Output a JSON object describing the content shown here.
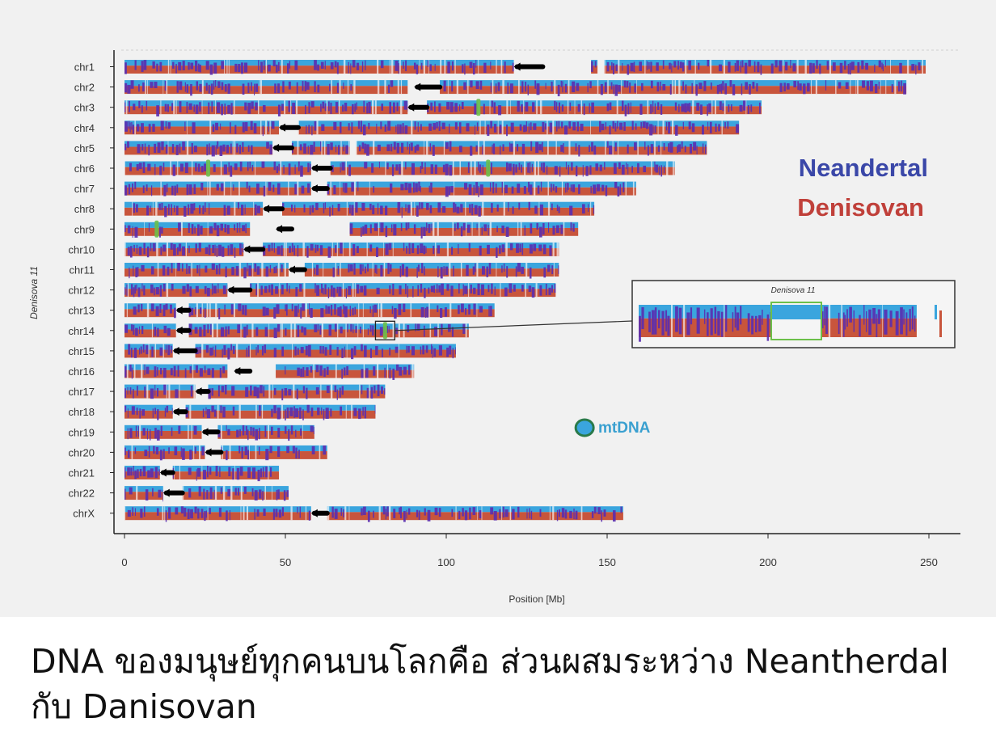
{
  "chart_data": {
    "type": "chromosome-ideogram",
    "title": "",
    "xlabel": "Position [Mb]",
    "ylabel": "Denisova 11",
    "xlim": [
      0,
      260
    ],
    "xticks": [
      "0",
      "50",
      "100",
      "150",
      "200",
      "250"
    ],
    "xtick_values": [
      0,
      50,
      100,
      150,
      200,
      250
    ],
    "colors": {
      "neandertal": "#5a2db0",
      "denisovan": "#c8553c",
      "sequenced": "#3aa5de",
      "centromere": "#000000",
      "highlight": "#6cc04a"
    },
    "legend": {
      "neandertal": "Neandertal",
      "denisovan": "Denisovan"
    },
    "mtdna_label": "mtDNA",
    "mtdna_position": 143,
    "inset_title": "Denisova 11",
    "inset_source": {
      "chromosome": "chr14",
      "start": 78,
      "end": 84
    },
    "chromosomes": [
      {
        "name": "chr1",
        "length": 249,
        "centromere": [
          121,
          130
        ],
        "gaps": [
          [
            130,
            145
          ],
          [
            147,
            149
          ]
        ],
        "highlights": []
      },
      {
        "name": "chr2",
        "length": 243,
        "centromere": [
          90,
          98
        ],
        "gaps": [
          [
            88,
            90
          ]
        ],
        "highlights": []
      },
      {
        "name": "chr3",
        "length": 198,
        "centromere": [
          88,
          94
        ],
        "gaps": [],
        "highlights": [
          110
        ]
      },
      {
        "name": "chr4",
        "length": 191,
        "centromere": [
          48,
          54
        ],
        "gaps": [],
        "highlights": []
      },
      {
        "name": "chr5",
        "length": 181,
        "centromere": [
          46,
          52
        ],
        "gaps": [
          [
            70,
            72
          ]
        ],
        "highlights": []
      },
      {
        "name": "chr6",
        "length": 171,
        "centromere": [
          58,
          64
        ],
        "gaps": [],
        "highlights": [
          26,
          113
        ]
      },
      {
        "name": "chr7",
        "length": 159,
        "centromere": [
          58,
          63
        ],
        "gaps": [],
        "highlights": []
      },
      {
        "name": "chr8",
        "length": 146,
        "centromere": [
          43,
          49
        ],
        "gaps": [],
        "highlights": []
      },
      {
        "name": "chr9",
        "length": 141,
        "centromere": [
          47,
          52
        ],
        "gaps": [
          [
            39,
            47
          ],
          [
            52,
            70
          ]
        ],
        "highlights": [
          10
        ]
      },
      {
        "name": "chr10",
        "length": 135,
        "centromere": [
          37,
          43
        ],
        "gaps": [],
        "highlights": []
      },
      {
        "name": "chr11",
        "length": 135,
        "centromere": [
          51,
          56
        ],
        "gaps": [],
        "highlights": []
      },
      {
        "name": "chr12",
        "length": 134,
        "centromere": [
          32,
          39
        ],
        "gaps": [],
        "highlights": []
      },
      {
        "name": "chr13",
        "length": 115,
        "centromere": [
          16,
          20
        ],
        "gaps": [],
        "highlights": []
      },
      {
        "name": "chr14",
        "length": 107,
        "centromere": [
          16,
          20
        ],
        "gaps": [],
        "highlights": [
          81
        ]
      },
      {
        "name": "chr15",
        "length": 103,
        "centromere": [
          15,
          22
        ],
        "gaps": [],
        "highlights": []
      },
      {
        "name": "chr16",
        "length": 90,
        "centromere": [
          34,
          39
        ],
        "gaps": [
          [
            32,
            34
          ],
          [
            39,
            47
          ]
        ],
        "highlights": []
      },
      {
        "name": "chr17",
        "length": 81,
        "centromere": [
          22,
          26
        ],
        "gaps": [],
        "highlights": []
      },
      {
        "name": "chr18",
        "length": 78,
        "centromere": [
          15,
          19
        ],
        "gaps": [],
        "highlights": []
      },
      {
        "name": "chr19",
        "length": 59,
        "centromere": [
          24,
          29
        ],
        "gaps": [],
        "highlights": []
      },
      {
        "name": "chr20",
        "length": 63,
        "centromere": [
          25,
          30
        ],
        "gaps": [],
        "highlights": []
      },
      {
        "name": "chr21",
        "length": 48,
        "centromere": [
          11,
          15
        ],
        "gaps": [],
        "highlights": []
      },
      {
        "name": "chr22",
        "length": 51,
        "centromere": [
          12,
          18
        ],
        "gaps": [],
        "highlights": []
      },
      {
        "name": "chrX",
        "length": 155,
        "centromere": [
          58,
          63
        ],
        "gaps": [],
        "highlights": []
      }
    ]
  },
  "caption": "DNA ของมนุษย์ทุกคนบนโลกคือ ส่วนผสมระหว่าง Neantherdal กับ Danisovan"
}
